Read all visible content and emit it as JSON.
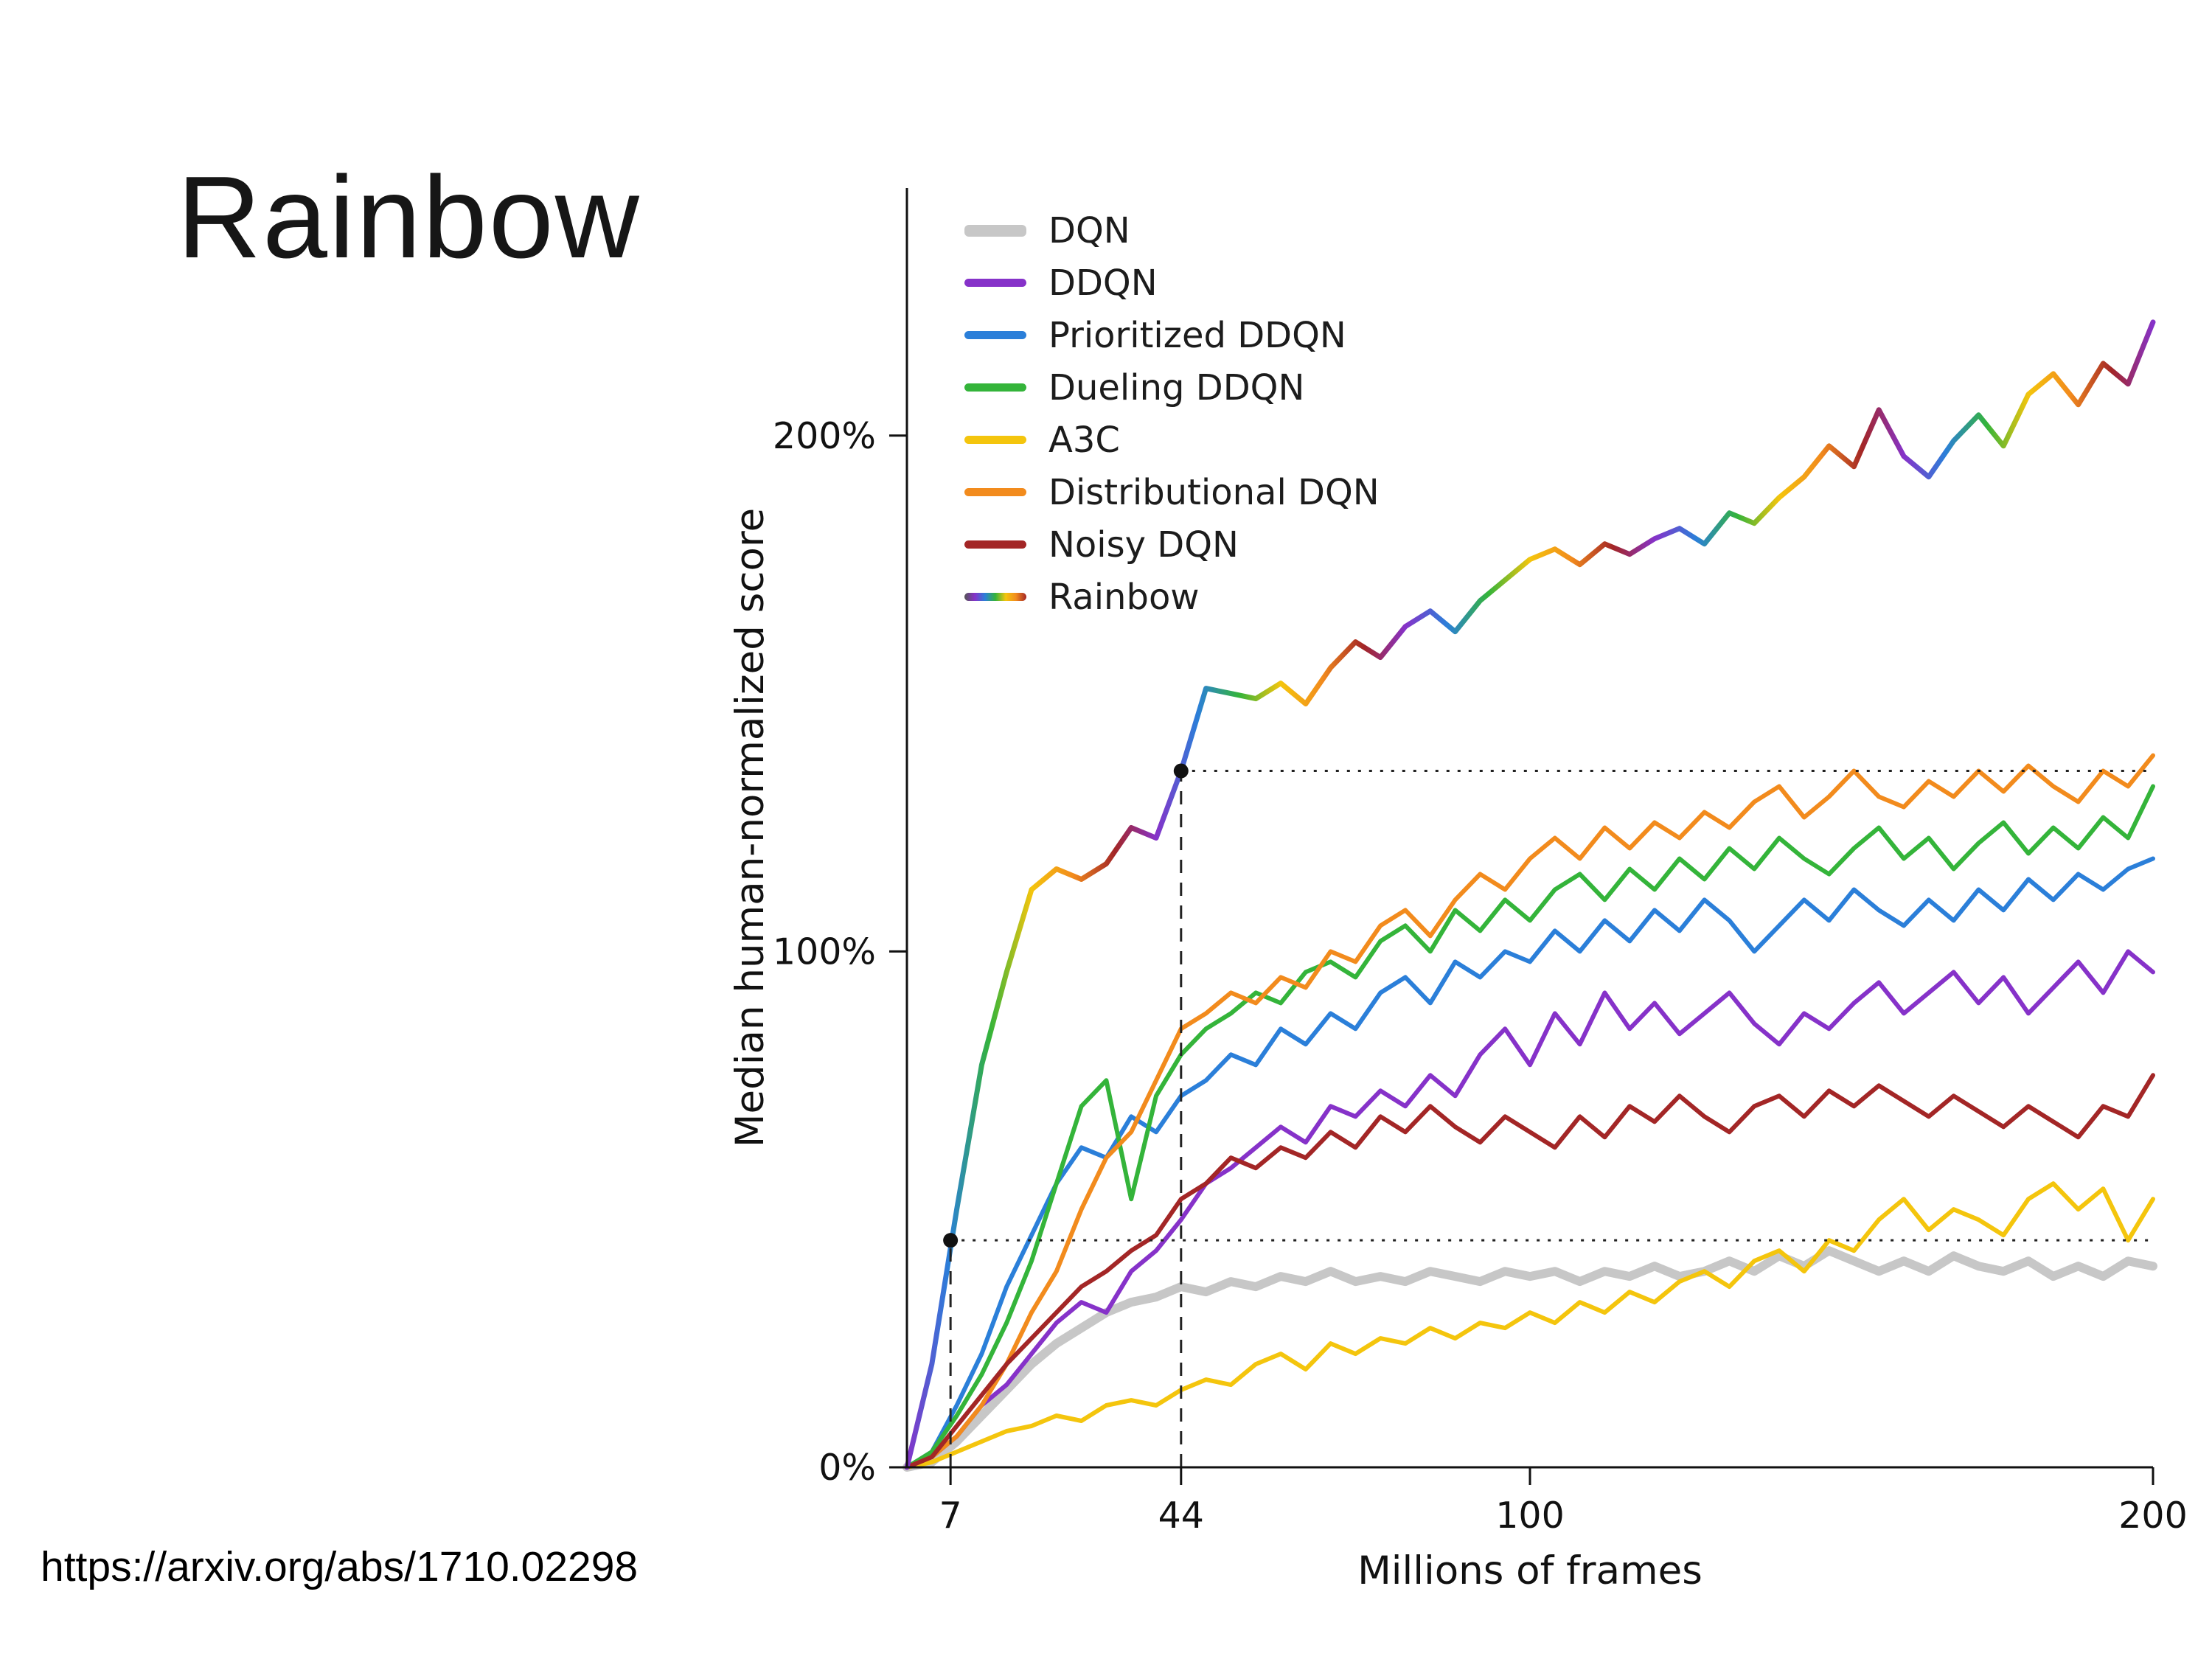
{
  "slide": {
    "title": "Rainbow",
    "source_url": "https://arxiv.org/abs/1710.02298"
  },
  "chart_data": {
    "type": "line",
    "title": "",
    "xlabel": "Millions of frames",
    "ylabel": "Median human-normalized score",
    "xlim": [
      0,
      200
    ],
    "ylim": [
      0,
      248
    ],
    "grid": false,
    "legend_position": "upper left",
    "x_ticks": [
      {
        "v": 7,
        "label": "7"
      },
      {
        "v": 44,
        "label": "44"
      },
      {
        "v": 100,
        "label": "100"
      },
      {
        "v": 200,
        "label": "200"
      }
    ],
    "y_ticks": [
      {
        "v": 0,
        "label": "0%"
      },
      {
        "v": 100,
        "label": "100%"
      },
      {
        "v": 200,
        "label": "200%"
      }
    ],
    "x": [
      0,
      4,
      8,
      12,
      16,
      20,
      24,
      28,
      32,
      36,
      40,
      44,
      48,
      52,
      56,
      60,
      64,
      68,
      72,
      76,
      80,
      84,
      88,
      92,
      96,
      100,
      104,
      108,
      112,
      116,
      120,
      124,
      128,
      132,
      136,
      140,
      144,
      148,
      152,
      156,
      160,
      164,
      168,
      172,
      176,
      180,
      184,
      188,
      192,
      196,
      200
    ],
    "series": [
      {
        "name": "DQN",
        "color": "#c7c7c7",
        "lw": 12,
        "values": [
          0,
          1,
          5,
          10,
          15,
          20,
          24,
          27,
          30,
          32,
          33,
          35,
          34,
          36,
          35,
          37,
          36,
          38,
          36,
          37,
          36,
          38,
          37,
          36,
          38,
          37,
          38,
          36,
          38,
          37,
          39,
          37,
          38,
          40,
          38,
          41,
          39,
          42,
          40,
          38,
          40,
          38,
          41,
          39,
          38,
          40,
          37,
          39,
          37,
          40,
          39
        ]
      },
      {
        "name": "DDQN",
        "color": "#8632c9",
        "lw": 6,
        "values": [
          0,
          2,
          6,
          12,
          16,
          22,
          28,
          32,
          30,
          38,
          42,
          48,
          55,
          58,
          62,
          66,
          63,
          70,
          68,
          73,
          70,
          76,
          72,
          80,
          85,
          78,
          88,
          82,
          92,
          85,
          90,
          84,
          88,
          92,
          86,
          82,
          88,
          85,
          90,
          94,
          88,
          92,
          96,
          90,
          95,
          88,
          93,
          98,
          92,
          100,
          96
        ]
      },
      {
        "name": "Prioritized DDQN",
        "color": "#2b7fd9",
        "lw": 6,
        "values": [
          0,
          3,
          12,
          22,
          35,
          45,
          55,
          62,
          60,
          68,
          65,
          72,
          75,
          80,
          78,
          85,
          82,
          88,
          85,
          92,
          95,
          90,
          98,
          95,
          100,
          98,
          104,
          100,
          106,
          102,
          108,
          104,
          110,
          106,
          100,
          105,
          110,
          106,
          112,
          108,
          105,
          110,
          106,
          112,
          108,
          114,
          110,
          115,
          112,
          116,
          118
        ]
      },
      {
        "name": "Dueling DDQN",
        "color": "#34b43a",
        "lw": 6,
        "values": [
          0,
          3,
          10,
          18,
          28,
          40,
          55,
          70,
          75,
          52,
          72,
          80,
          85,
          88,
          92,
          90,
          96,
          98,
          95,
          102,
          105,
          100,
          108,
          104,
          110,
          106,
          112,
          115,
          110,
          116,
          112,
          118,
          114,
          120,
          116,
          122,
          118,
          115,
          120,
          124,
          118,
          122,
          116,
          121,
          125,
          119,
          124,
          120,
          126,
          122,
          132
        ]
      },
      {
        "name": "A3C",
        "color": "#f4c50d",
        "lw": 6,
        "values": [
          0,
          1,
          3,
          5,
          7,
          8,
          10,
          9,
          12,
          13,
          12,
          15,
          17,
          16,
          20,
          22,
          19,
          24,
          22,
          25,
          24,
          27,
          25,
          28,
          27,
          30,
          28,
          32,
          30,
          34,
          32,
          36,
          38,
          35,
          40,
          42,
          38,
          44,
          42,
          48,
          52,
          46,
          50,
          48,
          45,
          52,
          55,
          50,
          54,
          44,
          52
        ]
      },
      {
        "name": "Distributional DQN",
        "color": "#f28b1d",
        "lw": 6,
        "values": [
          0,
          2,
          6,
          12,
          20,
          30,
          38,
          50,
          60,
          65,
          75,
          85,
          88,
          92,
          90,
          95,
          93,
          100,
          98,
          105,
          108,
          103,
          110,
          115,
          112,
          118,
          122,
          118,
          124,
          120,
          125,
          122,
          127,
          124,
          129,
          132,
          126,
          130,
          135,
          130,
          128,
          133,
          130,
          135,
          131,
          136,
          132,
          129,
          135,
          132,
          138
        ]
      },
      {
        "name": "Noisy DQN",
        "color": "#a32626",
        "lw": 6,
        "values": [
          0,
          2,
          8,
          14,
          20,
          25,
          30,
          35,
          38,
          42,
          45,
          52,
          55,
          60,
          58,
          62,
          60,
          65,
          62,
          68,
          65,
          70,
          66,
          63,
          68,
          65,
          62,
          68,
          64,
          70,
          67,
          72,
          68,
          65,
          70,
          72,
          68,
          73,
          70,
          74,
          71,
          68,
          72,
          69,
          66,
          70,
          67,
          64,
          70,
          68,
          76
        ]
      },
      {
        "name": "Rainbow",
        "color": "rainbow",
        "lw": 7,
        "values": [
          0,
          20,
          50,
          78,
          96,
          112,
          116,
          114,
          117,
          124,
          122,
          135,
          151,
          150,
          149,
          152,
          148,
          155,
          160,
          157,
          163,
          166,
          162,
          168,
          172,
          176,
          178,
          175,
          179,
          177,
          180,
          182,
          179,
          185,
          183,
          188,
          192,
          198,
          194,
          205,
          196,
          192,
          199,
          204,
          198,
          208,
          212,
          206,
          214,
          210,
          222
        ]
      }
    ],
    "rainbow_palette": [
      "#8632c9",
      "#2b7fd9",
      "#34b43a",
      "#f4c50d",
      "#f28b1d",
      "#a32626"
    ],
    "annotations": {
      "points": [
        {
          "x": 7,
          "y": 44
        },
        {
          "x": 44,
          "y": 135
        }
      ],
      "vlines": [
        {
          "x": 7,
          "y0": 0,
          "y1": 44
        },
        {
          "x": 44,
          "y0": 0,
          "y1": 135
        }
      ],
      "hlines": [
        {
          "y": 44,
          "x0": 7,
          "x1": 200
        },
        {
          "y": 135,
          "x0": 44,
          "x1": 200
        }
      ]
    }
  }
}
